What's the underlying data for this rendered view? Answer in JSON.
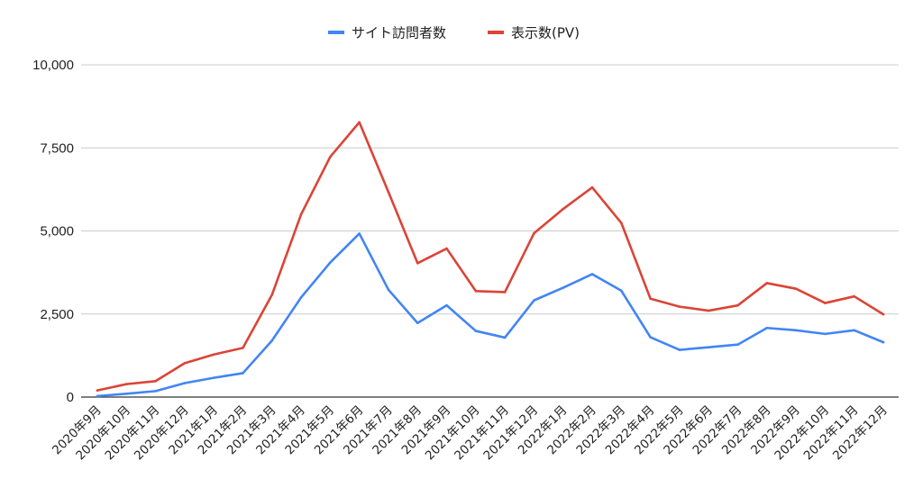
{
  "chart_data": {
    "type": "line",
    "title": "",
    "xlabel": "",
    "ylabel": "",
    "ylim": [
      0,
      10000
    ],
    "y_ticks": [
      0,
      2500,
      5000,
      7500,
      10000
    ],
    "y_tick_labels": [
      "0",
      "2,500",
      "5,000",
      "7,500",
      "10,000"
    ],
    "grid": true,
    "legend_position": "top",
    "categories": [
      "2020年9月",
      "2020年10月",
      "2020年11月",
      "2020年12月",
      "2021年1月",
      "2021年2月",
      "2021年3月",
      "2021年4月",
      "2021年5月",
      "2021年6月",
      "2021年7月",
      "2021年8月",
      "2021年9月",
      "2021年10月",
      "2021年11月",
      "2021年12月",
      "2022年1月",
      "2022年2月",
      "2022年3月",
      "2022年4月",
      "2022年5月",
      "2022年6月",
      "2022年7月",
      "2022年8月",
      "2022年9月",
      "2022年10月",
      "2022年11月",
      "2022年12月"
    ],
    "series": [
      {
        "name": "サイト訪問者数",
        "color": "#4285f4",
        "values": [
          30,
          100,
          180,
          420,
          580,
          720,
          1700,
          3000,
          4050,
          4920,
          3230,
          2230,
          2760,
          1990,
          1790,
          2910,
          3290,
          3700,
          3200,
          1800,
          1420,
          1500,
          1580,
          2080,
          2010,
          1900,
          2010,
          1650
        ]
      },
      {
        "name": "表示数(PV)",
        "color": "#db4437",
        "values": [
          200,
          390,
          480,
          1020,
          1280,
          1480,
          3080,
          5500,
          7230,
          8270,
          6170,
          4030,
          4470,
          3190,
          3160,
          4930,
          5660,
          6310,
          5240,
          2960,
          2720,
          2600,
          2760,
          3430,
          3260,
          2830,
          3030,
          2490
        ]
      }
    ]
  }
}
